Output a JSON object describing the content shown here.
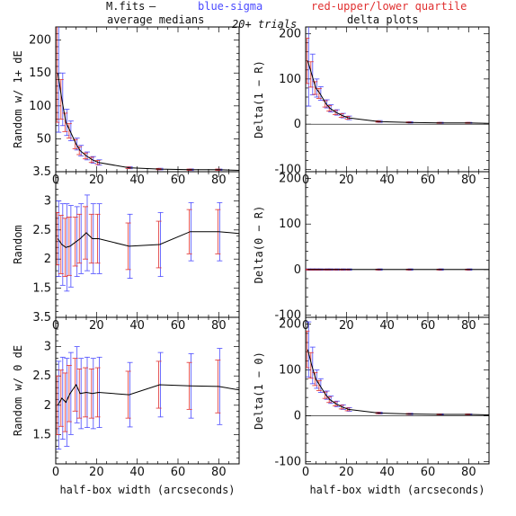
{
  "header": {
    "source": "M.fits",
    "dash": "–",
    "blue_label": "blue-sigma",
    "red_label": "red-upper/lower quartile",
    "left_title": "average medians",
    "center_note": "20+ trials",
    "right_title": "delta plots"
  },
  "colors": {
    "line": "#000000",
    "sigma": "#4a4aff",
    "quartile": "#e03030",
    "frame": "#000000"
  },
  "chart_data": [
    {
      "id": "avg_1dE",
      "type": "line",
      "ylabel": "Random w/ 1+ dE",
      "xlim": [
        0,
        90
      ],
      "ylim": [
        0,
        220
      ],
      "yticks": [
        50,
        100,
        150,
        200
      ],
      "xticks": [
        0,
        20,
        40,
        60,
        80
      ],
      "x": [
        1,
        3,
        5,
        7,
        10,
        12,
        15,
        18,
        21,
        36,
        51,
        66,
        80,
        90
      ],
      "y": [
        150,
        110,
        75,
        62,
        42,
        32,
        24,
        18,
        14,
        6,
        4,
        3,
        3,
        2
      ],
      "sigma_err": [
        90,
        40,
        20,
        15,
        9,
        8,
        6,
        5,
        4,
        1.5,
        1.2,
        1.2,
        1,
        0
      ],
      "quartile_err": [
        75,
        30,
        14,
        11,
        7,
        6,
        4.5,
        4,
        3,
        1.2,
        1,
        1,
        1,
        0
      ]
    },
    {
      "id": "delta_1R",
      "type": "line",
      "ylabel": "Delta(1 − R)",
      "xlim": [
        0,
        90
      ],
      "ylim": [
        -105,
        215
      ],
      "yticks": [
        -100,
        0,
        100,
        200
      ],
      "xticks": [
        0,
        20,
        40,
        60,
        80
      ],
      "x": [
        1,
        3,
        5,
        7,
        10,
        12,
        15,
        18,
        21,
        36,
        51,
        66,
        80,
        90
      ],
      "y": [
        140,
        110,
        80,
        68,
        45,
        35,
        26,
        19,
        14,
        6,
        4,
        3,
        3,
        2
      ],
      "sigma_err": [
        100,
        45,
        20,
        15,
        9,
        8,
        6,
        5,
        4,
        2,
        1.5,
        1.2,
        1,
        0
      ],
      "quartile_err": [
        50,
        28,
        14,
        11,
        7,
        6,
        4.5,
        4,
        3,
        1.5,
        1,
        1,
        1,
        0
      ]
    },
    {
      "id": "avg_random",
      "type": "line",
      "ylabel": "Random",
      "xlim": [
        0,
        90
      ],
      "ylim": [
        1.0,
        3.5
      ],
      "yticks": [
        1.5,
        2,
        2.5,
        3,
        3.5
      ],
      "xticks": [
        0,
        20,
        40,
        60,
        80
      ],
      "x": [
        1,
        3,
        5,
        7,
        10,
        12,
        15,
        18,
        21,
        36,
        51,
        66,
        80,
        90
      ],
      "y": [
        2.35,
        2.25,
        2.2,
        2.22,
        2.3,
        2.35,
        2.45,
        2.35,
        2.35,
        2.22,
        2.25,
        2.47,
        2.47,
        2.44
      ],
      "sigma_err": [
        0.65,
        0.7,
        0.75,
        0.7,
        0.6,
        0.6,
        0.65,
        0.6,
        0.6,
        0.55,
        0.55,
        0.5,
        0.5,
        0
      ],
      "quartile_err": [
        0.45,
        0.5,
        0.5,
        0.5,
        0.42,
        0.42,
        0.45,
        0.42,
        0.42,
        0.4,
        0.4,
        0.38,
        0.38,
        0
      ]
    },
    {
      "id": "delta_0R",
      "type": "line",
      "ylabel": "Delta(0 − R)",
      "xlim": [
        0,
        90
      ],
      "ylim": [
        -105,
        215
      ],
      "yticks": [
        -100,
        0,
        100,
        200
      ],
      "xticks": [
        0,
        20,
        40,
        60,
        80
      ],
      "x": [
        1,
        3,
        5,
        7,
        10,
        12,
        15,
        18,
        21,
        36,
        51,
        66,
        80,
        90
      ],
      "y": [
        0,
        0,
        0,
        0,
        0,
        0,
        0,
        0,
        0,
        0,
        0,
        0,
        0,
        0
      ],
      "sigma_err": [
        1.5,
        1.5,
        1.5,
        1.5,
        1.5,
        1.5,
        1.5,
        1.5,
        1.5,
        1.5,
        1.5,
        1.5,
        1.5,
        0
      ],
      "quartile_err": [
        1,
        1,
        1,
        1,
        1,
        1,
        1,
        1,
        1,
        1,
        1,
        1,
        1,
        0
      ]
    },
    {
      "id": "avg_0dE",
      "type": "line",
      "ylabel": "Random w/ 0 dE",
      "xlabel": "half-box width (arcseconds)",
      "xlim": [
        0,
        90
      ],
      "ylim": [
        1.0,
        3.5
      ],
      "yticks": [
        1.5,
        2,
        2.5,
        3,
        3.5
      ],
      "xticks": [
        0,
        20,
        40,
        60,
        80
      ],
      "x": [
        1,
        3,
        5,
        7,
        10,
        12,
        15,
        18,
        21,
        36,
        51,
        66,
        80,
        90
      ],
      "y": [
        2.0,
        2.12,
        2.05,
        2.2,
        2.35,
        2.2,
        2.22,
        2.2,
        2.22,
        2.18,
        2.35,
        2.33,
        2.32,
        2.26
      ],
      "sigma_err": [
        0.75,
        0.7,
        0.75,
        0.7,
        0.65,
        0.6,
        0.6,
        0.6,
        0.6,
        0.55,
        0.55,
        0.55,
        0.65,
        0
      ],
      "quartile_err": [
        0.5,
        0.48,
        0.5,
        0.48,
        0.45,
        0.42,
        0.42,
        0.42,
        0.42,
        0.4,
        0.4,
        0.4,
        0.45,
        0
      ]
    },
    {
      "id": "delta_10",
      "type": "line",
      "ylabel": "Delta(1 − 0)",
      "xlabel": "half-box width (arcseconds)",
      "xlim": [
        0,
        90
      ],
      "ylim": [
        -105,
        215
      ],
      "yticks": [
        -100,
        0,
        100,
        200
      ],
      "xticks": [
        0,
        20,
        40,
        60,
        80
      ],
      "x": [
        1,
        3,
        5,
        7,
        10,
        12,
        15,
        18,
        21,
        36,
        51,
        66,
        80,
        90
      ],
      "y": [
        145,
        110,
        80,
        66,
        45,
        35,
        26,
        19,
        14,
        6,
        4,
        3,
        3,
        2
      ],
      "sigma_err": [
        60,
        40,
        20,
        15,
        9,
        8,
        6,
        5,
        4,
        2,
        1.5,
        1.2,
        1,
        0
      ],
      "quartile_err": [
        40,
        28,
        14,
        11,
        7,
        6,
        4.5,
        4,
        3,
        1.5,
        1,
        1,
        1,
        0
      ]
    }
  ]
}
